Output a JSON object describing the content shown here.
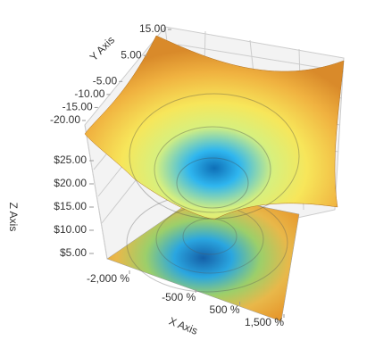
{
  "chart_data": {
    "type": "surface3d",
    "x_label": "X Axis",
    "y_label": "Y Axis",
    "z_label": "Z Axis",
    "xlim": [
      -2000,
      1500
    ],
    "xticks": [
      {
        "value": -2000,
        "label": "-2,000 %"
      },
      {
        "value": -500,
        "label": "-500 %"
      },
      {
        "value": 500,
        "label": "500 %"
      },
      {
        "value": 1500,
        "label": "1,500 %"
      }
    ],
    "ylim": [
      -20,
      15
    ],
    "yticks": [
      {
        "value": 15,
        "label": "15.00"
      },
      {
        "value": 5,
        "label": "5.00"
      },
      {
        "value": -5,
        "label": "-5.00"
      },
      {
        "value": -10,
        "label": "-10.00"
      },
      {
        "value": -15,
        "label": "-15.00"
      },
      {
        "value": -20,
        "label": "-20.00"
      }
    ],
    "zlim": [
      5,
      25
    ],
    "zticks": [
      {
        "value": 25,
        "label": "$25.00"
      },
      {
        "value": 20,
        "label": "$20.00"
      },
      {
        "value": 15,
        "label": "$15.00"
      },
      {
        "value": 10,
        "label": "$10.00"
      },
      {
        "value": 5,
        "label": "$5.00"
      }
    ],
    "grid": true
  }
}
